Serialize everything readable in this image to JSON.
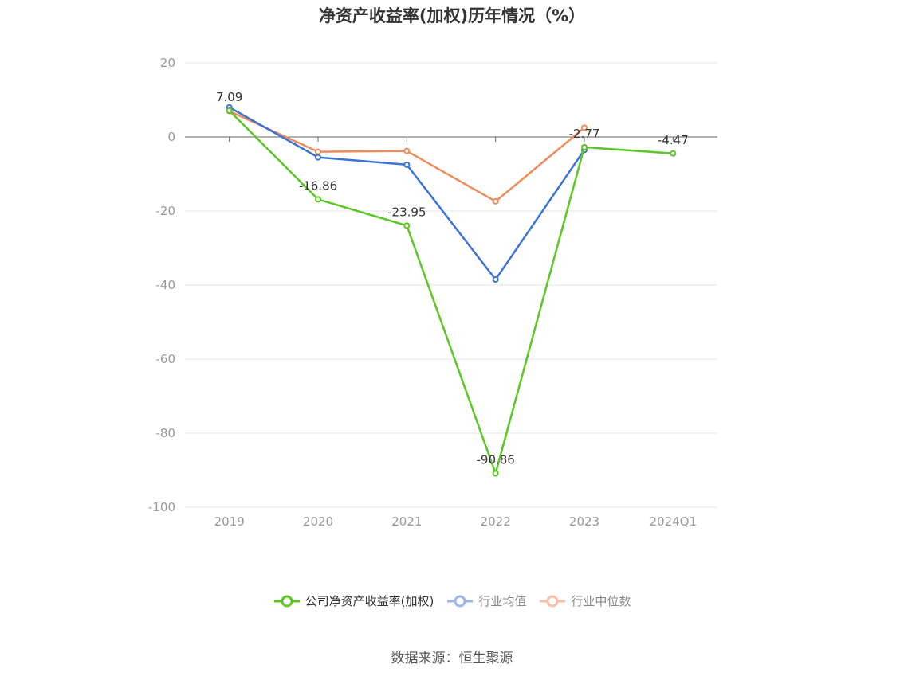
{
  "title": "净资产收益率(加权)历年情况（%）",
  "source": "数据来源：恒生聚源",
  "chart_data": {
    "type": "line",
    "title": "净资产收益率(加权)历年情况（%）",
    "categories": [
      "2019",
      "2020",
      "2021",
      "2022",
      "2023",
      "2024Q1"
    ],
    "ylim": [
      -100,
      20
    ],
    "yticks": [
      20,
      0,
      -20,
      -40,
      -60,
      -80,
      -100
    ],
    "grid": true,
    "legend_position": "bottom",
    "series": [
      {
        "name": "公司净资产收益率(加权)",
        "color": "#5ac724",
        "values": [
          7.09,
          -16.86,
          -23.95,
          -90.86,
          -2.77,
          -4.47
        ],
        "labels": [
          "7.09",
          "-16.86",
          "-23.95",
          "-90.86",
          "-2.77",
          "-4.47"
        ]
      },
      {
        "name": "行业均值",
        "color": "#3a72d8",
        "values": [
          8.0,
          -5.5,
          -7.5,
          -38.5,
          -3.5,
          null
        ]
      },
      {
        "name": "行业中位数",
        "color": "#f08a5d",
        "values": [
          7.0,
          -4.0,
          -3.8,
          -17.4,
          2.5,
          null
        ]
      }
    ]
  }
}
